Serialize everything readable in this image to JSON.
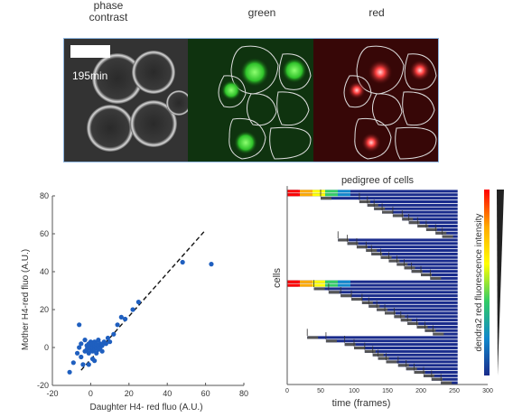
{
  "microscopy": {
    "panels": [
      {
        "label": "phase\ncontrast"
      },
      {
        "label": "green"
      },
      {
        "label": "red"
      }
    ],
    "time_label": "195min"
  },
  "chart_data": [
    {
      "type": "scatter",
      "xlabel": "Daughter H4- red fluo (A.U.)",
      "ylabel": "Mother H4-red fluo (A.U.)",
      "xlim": [
        -20,
        80
      ],
      "ylim": [
        -20,
        80
      ],
      "xticks": [
        -20,
        0,
        20,
        40,
        60,
        80
      ],
      "yticks": [
        -20,
        0,
        20,
        40,
        60,
        80
      ],
      "marker_color": "#1f5fbf",
      "fit_line": {
        "style": "dashed",
        "x": [
          -5,
          60
        ],
        "y": [
          -12,
          62
        ]
      },
      "points": [
        [
          -11,
          -13
        ],
        [
          -9,
          -8
        ],
        [
          -7,
          -3
        ],
        [
          -6,
          0
        ],
        [
          -5,
          2
        ],
        [
          -5,
          -5
        ],
        [
          -4,
          -9
        ],
        [
          -3,
          -2
        ],
        [
          -3,
          4
        ],
        [
          -2,
          -1
        ],
        [
          -2,
          1
        ],
        [
          -1,
          -3
        ],
        [
          -1,
          0
        ],
        [
          -1,
          2
        ],
        [
          0,
          -1
        ],
        [
          0,
          1
        ],
        [
          0,
          3
        ],
        [
          1,
          -2
        ],
        [
          1,
          0
        ],
        [
          1,
          2
        ],
        [
          1,
          -6
        ],
        [
          2,
          -1
        ],
        [
          2,
          1
        ],
        [
          2,
          3
        ],
        [
          3,
          0
        ],
        [
          3,
          -3
        ],
        [
          3,
          2
        ],
        [
          4,
          1
        ],
        [
          4,
          -1
        ],
        [
          4,
          4
        ],
        [
          5,
          0
        ],
        [
          5,
          2
        ],
        [
          6,
          1
        ],
        [
          6,
          -2
        ],
        [
          7,
          3
        ],
        [
          8,
          2
        ],
        [
          9,
          5
        ],
        [
          10,
          3
        ],
        [
          12,
          7
        ],
        [
          14,
          12
        ],
        [
          16,
          16
        ],
        [
          18,
          15
        ],
        [
          22,
          20
        ],
        [
          25,
          24
        ],
        [
          -6,
          12
        ],
        [
          -1,
          -9
        ],
        [
          2,
          -7
        ],
        [
          48,
          45
        ],
        [
          63,
          44
        ]
      ]
    },
    {
      "type": "heatmap",
      "title": "pedigree of cells",
      "xlabel": "time (frames)",
      "ylabel": "cells",
      "xlim": [
        0,
        300
      ],
      "xticks": [
        0,
        50,
        100,
        150,
        200,
        250,
        300
      ],
      "colorbar_label": "dendra2 red fluorescence intensity",
      "color_scale": [
        "#ff0000",
        "#ffaa00",
        "#ffff00",
        "#33cc66",
        "#1188cc",
        "#1a2c8c"
      ],
      "rows": 56,
      "row_start_frames": [
        0,
        0,
        50,
        108,
        120,
        130,
        142,
        158,
        172,
        182,
        195,
        208,
        222,
        232,
        76,
        90,
        104,
        118,
        126,
        140,
        152,
        164,
        175,
        186,
        200,
        214,
        0,
        0,
        40,
        62,
        80,
        96,
        112,
        122,
        134,
        146,
        160,
        170,
        180,
        194,
        206,
        218,
        30,
        58,
        86,
        100,
        116,
        128,
        136,
        148,
        166,
        178,
        190,
        204,
        216,
        230
      ]
    }
  ]
}
